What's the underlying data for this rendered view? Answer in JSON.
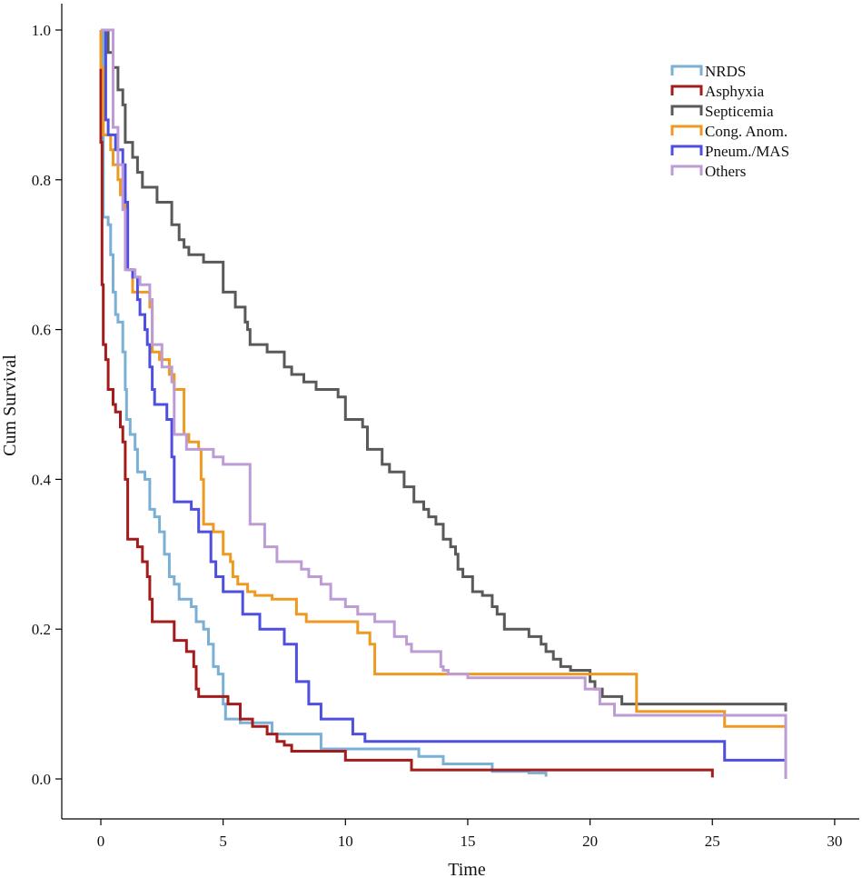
{
  "chart_data": {
    "type": "line",
    "title": "",
    "xlabel": "Time",
    "ylabel": "Cum Survival",
    "xlim": [
      -1.5,
      30.5
    ],
    "ylim": [
      -0.05,
      1.03
    ],
    "xticks": [
      0,
      5,
      10,
      15,
      20,
      25,
      30
    ],
    "yticks": [
      0.0,
      0.2,
      0.4,
      0.6,
      0.8,
      1.0
    ],
    "xtick_labels": [
      "0",
      "5",
      "10",
      "15",
      "20",
      "25",
      "30"
    ],
    "ytick_labels": [
      "0.0",
      "0.2",
      "0.4",
      "0.6",
      "0.8",
      "1.0"
    ],
    "grid": false,
    "legend_position": "top-right",
    "series": [
      {
        "name": "NRDS",
        "color": "#7aafd6",
        "points": [
          [
            0.1,
            0.75
          ],
          [
            0.3,
            0.74
          ],
          [
            0.4,
            0.7
          ],
          [
            0.5,
            0.65
          ],
          [
            0.6,
            0.62
          ],
          [
            0.7,
            0.61
          ],
          [
            0.9,
            0.57
          ],
          [
            1.0,
            0.52
          ],
          [
            1.05,
            0.48
          ],
          [
            1.2,
            0.46
          ],
          [
            1.4,
            0.44
          ],
          [
            1.5,
            0.41
          ],
          [
            1.8,
            0.4
          ],
          [
            2.0,
            0.36
          ],
          [
            2.2,
            0.35
          ],
          [
            2.4,
            0.33
          ],
          [
            2.6,
            0.3
          ],
          [
            2.8,
            0.27
          ],
          [
            3.0,
            0.26
          ],
          [
            3.2,
            0.24
          ],
          [
            3.7,
            0.23
          ],
          [
            3.9,
            0.21
          ],
          [
            4.2,
            0.2
          ],
          [
            4.4,
            0.18
          ],
          [
            4.6,
            0.15
          ],
          [
            4.8,
            0.14
          ],
          [
            5.0,
            0.1
          ],
          [
            5.1,
            0.08
          ],
          [
            5.7,
            0.075
          ],
          [
            7.0,
            0.06
          ],
          [
            9.0,
            0.04
          ],
          [
            11.0,
            0.04
          ],
          [
            13.0,
            0.03
          ],
          [
            14.0,
            0.02
          ],
          [
            16.0,
            0.01
          ],
          [
            17.5,
            0.008
          ],
          [
            18.2,
            0.003
          ]
        ]
      },
      {
        "name": "Asphyxia",
        "color": "#a31c1c",
        "points": [
          [
            0.0,
            0.85
          ],
          [
            0.05,
            0.66
          ],
          [
            0.1,
            0.58
          ],
          [
            0.2,
            0.56
          ],
          [
            0.3,
            0.52
          ],
          [
            0.5,
            0.5
          ],
          [
            0.6,
            0.49
          ],
          [
            0.8,
            0.47
          ],
          [
            0.9,
            0.45
          ],
          [
            1.0,
            0.4
          ],
          [
            1.1,
            0.32
          ],
          [
            1.5,
            0.31
          ],
          [
            1.7,
            0.29
          ],
          [
            1.9,
            0.27
          ],
          [
            2.0,
            0.24
          ],
          [
            2.1,
            0.21
          ],
          [
            3.0,
            0.185
          ],
          [
            3.5,
            0.17
          ],
          [
            3.8,
            0.15
          ],
          [
            3.9,
            0.12
          ],
          [
            4.0,
            0.11
          ],
          [
            5.2,
            0.1
          ],
          [
            5.7,
            0.08
          ],
          [
            6.2,
            0.07
          ],
          [
            6.8,
            0.06
          ],
          [
            7.2,
            0.05
          ],
          [
            7.5,
            0.045
          ],
          [
            7.8,
            0.037
          ],
          [
            10.0,
            0.025
          ],
          [
            12.0,
            0.025
          ],
          [
            12.7,
            0.012
          ],
          [
            25.0,
            0.012
          ],
          [
            25.0,
            0.002
          ]
        ]
      },
      {
        "name": "Septicemia",
        "color": "#595959",
        "points": [
          [
            0.3,
            1.0
          ],
          [
            0.3,
            0.97
          ],
          [
            0.5,
            0.95
          ],
          [
            0.7,
            0.92
          ],
          [
            0.9,
            0.9
          ],
          [
            1.0,
            0.85
          ],
          [
            1.3,
            0.83
          ],
          [
            1.5,
            0.81
          ],
          [
            1.7,
            0.79
          ],
          [
            2.3,
            0.77
          ],
          [
            2.9,
            0.74
          ],
          [
            3.2,
            0.72
          ],
          [
            3.4,
            0.71
          ],
          [
            3.6,
            0.7
          ],
          [
            4.2,
            0.69
          ],
          [
            5.0,
            0.65
          ],
          [
            5.5,
            0.63
          ],
          [
            5.9,
            0.61
          ],
          [
            6.0,
            0.6
          ],
          [
            6.1,
            0.58
          ],
          [
            6.8,
            0.57
          ],
          [
            7.5,
            0.55
          ],
          [
            7.8,
            0.54
          ],
          [
            8.3,
            0.53
          ],
          [
            8.8,
            0.52
          ],
          [
            9.7,
            0.51
          ],
          [
            10.0,
            0.48
          ],
          [
            10.7,
            0.47
          ],
          [
            10.9,
            0.44
          ],
          [
            11.5,
            0.42
          ],
          [
            11.8,
            0.41
          ],
          [
            12.4,
            0.39
          ],
          [
            12.8,
            0.37
          ],
          [
            13.2,
            0.36
          ],
          [
            13.4,
            0.35
          ],
          [
            13.7,
            0.34
          ],
          [
            14.0,
            0.32
          ],
          [
            14.3,
            0.31
          ],
          [
            14.5,
            0.3
          ],
          [
            14.6,
            0.28
          ],
          [
            14.8,
            0.27
          ],
          [
            15.2,
            0.25
          ],
          [
            15.6,
            0.245
          ],
          [
            16.0,
            0.23
          ],
          [
            16.2,
            0.22
          ],
          [
            16.5,
            0.2
          ],
          [
            17.5,
            0.19
          ],
          [
            18.0,
            0.18
          ],
          [
            18.2,
            0.17
          ],
          [
            18.5,
            0.16
          ],
          [
            18.8,
            0.15
          ],
          [
            19.2,
            0.145
          ],
          [
            20.0,
            0.13
          ],
          [
            20.2,
            0.12
          ],
          [
            20.5,
            0.11
          ],
          [
            21.3,
            0.1
          ],
          [
            28.0,
            0.1
          ],
          [
            28.0,
            0.09
          ]
        ]
      },
      {
        "name": "Cong. Anom.",
        "color": "#ee9a22",
        "points": [
          [
            0.0,
            0.95
          ],
          [
            0.1,
            0.86
          ],
          [
            0.4,
            0.84
          ],
          [
            0.5,
            0.82
          ],
          [
            0.7,
            0.8
          ],
          [
            0.8,
            0.78
          ],
          [
            1.0,
            0.76
          ],
          [
            1.1,
            0.68
          ],
          [
            1.3,
            0.65
          ],
          [
            2.0,
            0.63
          ],
          [
            2.1,
            0.57
          ],
          [
            2.4,
            0.56
          ],
          [
            2.8,
            0.54
          ],
          [
            3.0,
            0.52
          ],
          [
            3.4,
            0.46
          ],
          [
            3.6,
            0.45
          ],
          [
            4.0,
            0.44
          ],
          [
            4.1,
            0.4
          ],
          [
            4.2,
            0.34
          ],
          [
            4.6,
            0.33
          ],
          [
            5.0,
            0.3
          ],
          [
            5.3,
            0.29
          ],
          [
            5.4,
            0.27
          ],
          [
            5.6,
            0.26
          ],
          [
            6.0,
            0.25
          ],
          [
            6.3,
            0.245
          ],
          [
            7.0,
            0.24
          ],
          [
            8.0,
            0.22
          ],
          [
            8.4,
            0.21
          ],
          [
            9.0,
            0.21
          ],
          [
            10.0,
            0.21
          ],
          [
            10.5,
            0.195
          ],
          [
            11.0,
            0.18
          ],
          [
            11.2,
            0.14
          ],
          [
            12.5,
            0.14
          ],
          [
            21.6,
            0.14
          ],
          [
            21.9,
            0.09
          ],
          [
            25.5,
            0.09
          ],
          [
            25.5,
            0.07
          ],
          [
            28.0,
            0.07
          ]
        ]
      },
      {
        "name": "Pneum./MAS",
        "color": "#4e4fe0",
        "points": [
          [
            0.05,
            1.0
          ],
          [
            0.2,
            0.88
          ],
          [
            0.3,
            0.86
          ],
          [
            0.6,
            0.84
          ],
          [
            0.9,
            0.82
          ],
          [
            1.0,
            0.77
          ],
          [
            1.1,
            0.68
          ],
          [
            1.3,
            0.67
          ],
          [
            1.5,
            0.64
          ],
          [
            1.6,
            0.62
          ],
          [
            1.8,
            0.6
          ],
          [
            1.9,
            0.58
          ],
          [
            2.0,
            0.55
          ],
          [
            2.1,
            0.52
          ],
          [
            2.2,
            0.5
          ],
          [
            2.7,
            0.48
          ],
          [
            2.9,
            0.43
          ],
          [
            3.0,
            0.37
          ],
          [
            3.5,
            0.37
          ],
          [
            3.7,
            0.36
          ],
          [
            4.0,
            0.33
          ],
          [
            4.5,
            0.29
          ],
          [
            4.7,
            0.27
          ],
          [
            5.0,
            0.25
          ],
          [
            5.3,
            0.25
          ],
          [
            5.8,
            0.22
          ],
          [
            6.0,
            0.22
          ],
          [
            6.5,
            0.2
          ],
          [
            7.0,
            0.2
          ],
          [
            7.5,
            0.18
          ],
          [
            8.0,
            0.13
          ],
          [
            8.5,
            0.1
          ],
          [
            9.0,
            0.08
          ],
          [
            9.8,
            0.08
          ],
          [
            10.3,
            0.06
          ],
          [
            10.8,
            0.05
          ],
          [
            25.0,
            0.05
          ],
          [
            25.5,
            0.025
          ],
          [
            28.0,
            0.025
          ]
        ]
      },
      {
        "name": "Others",
        "color": "#bd9bd5",
        "points": [
          [
            0.0,
            1.0
          ],
          [
            0.4,
            1.0
          ],
          [
            0.5,
            0.87
          ],
          [
            0.7,
            0.82
          ],
          [
            0.9,
            0.76
          ],
          [
            1.0,
            0.68
          ],
          [
            1.4,
            0.67
          ],
          [
            1.6,
            0.66
          ],
          [
            2.0,
            0.64
          ],
          [
            2.1,
            0.58
          ],
          [
            2.5,
            0.55
          ],
          [
            2.9,
            0.53
          ],
          [
            3.0,
            0.46
          ],
          [
            3.4,
            0.46
          ],
          [
            3.5,
            0.44
          ],
          [
            4.4,
            0.44
          ],
          [
            4.6,
            0.43
          ],
          [
            5.0,
            0.42
          ],
          [
            6.0,
            0.42
          ],
          [
            6.1,
            0.34
          ],
          [
            6.4,
            0.34
          ],
          [
            6.7,
            0.31
          ],
          [
            7.2,
            0.29
          ],
          [
            8.2,
            0.28
          ],
          [
            8.5,
            0.27
          ],
          [
            9.0,
            0.26
          ],
          [
            9.4,
            0.24
          ],
          [
            10.0,
            0.23
          ],
          [
            10.5,
            0.22
          ],
          [
            11.2,
            0.21
          ],
          [
            12.0,
            0.19
          ],
          [
            12.5,
            0.18
          ],
          [
            12.7,
            0.17
          ],
          [
            13.9,
            0.15
          ],
          [
            14.0,
            0.145
          ],
          [
            14.2,
            0.14
          ],
          [
            15.0,
            0.135
          ],
          [
            19.0,
            0.135
          ],
          [
            19.8,
            0.12
          ],
          [
            20.4,
            0.1
          ],
          [
            21.0,
            0.085
          ],
          [
            28.0,
            0.085
          ],
          [
            28.0,
            0.0
          ]
        ]
      }
    ]
  }
}
